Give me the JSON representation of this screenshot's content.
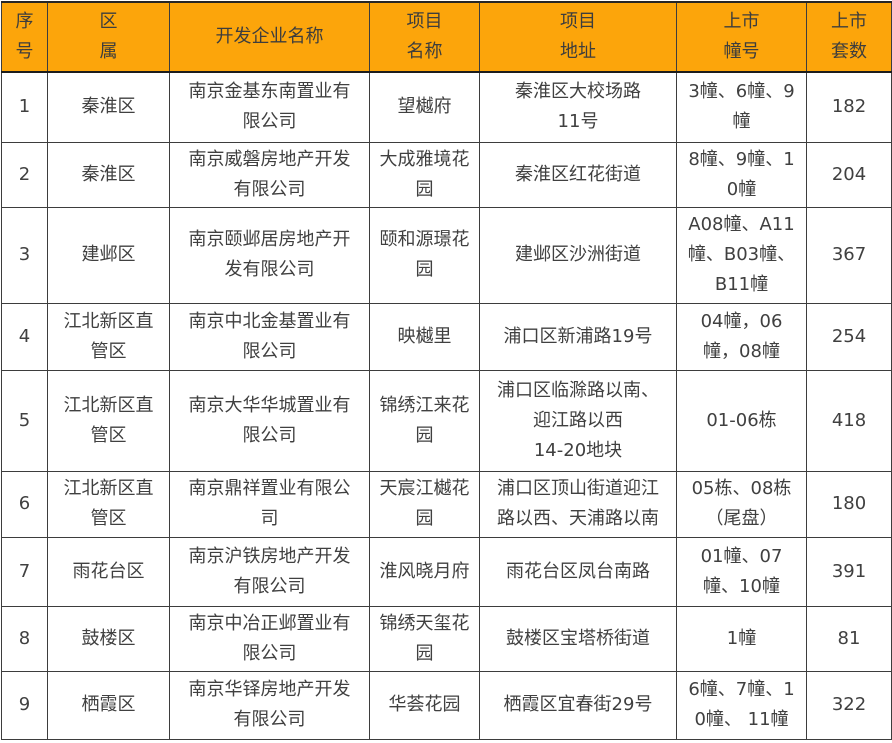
{
  "colors": {
    "header_bg": "#FCA50B",
    "header_text": "#3d3d3d",
    "body_text": "#404040",
    "grid_border": "#3d3d3d"
  },
  "table": {
    "columns": [
      {
        "id": "index",
        "label": "序\n号"
      },
      {
        "id": "district",
        "label": "区\n属"
      },
      {
        "id": "developer",
        "label": "开发企业名称"
      },
      {
        "id": "project",
        "label": "项目\n名称"
      },
      {
        "id": "address",
        "label": "项目\n地址"
      },
      {
        "id": "buildings",
        "label": "上市\n幢号"
      },
      {
        "id": "units",
        "label": "上市\n套数"
      }
    ],
    "rows": [
      {
        "index": "1",
        "district": "秦淮区",
        "developer": "南京金基东南置业有\n限公司",
        "project": "望樾府",
        "address": "秦淮区大校场路\n11号",
        "buildings": "3幢、6幢、9\n幢",
        "units": "182"
      },
      {
        "index": "2",
        "district": "秦淮区",
        "developer": "南京威磐房地产开发\n有限公司",
        "project": "大成雅境花\n园",
        "address": "秦淮区红花街道",
        "buildings": "8幢、9幢、1\n0幢",
        "units": "204"
      },
      {
        "index": "3",
        "district": "建邺区",
        "developer": "南京颐邺居房地产开\n发有限公司",
        "project": "颐和源璟花\n园",
        "address": "建邺区沙洲街道",
        "buildings": "A08幢、A11\n幢、B03幢、\nB11幢",
        "units": "367"
      },
      {
        "index": "4",
        "district": "江北新区直\n管区",
        "developer": "南京中北金基置业有\n限公司",
        "project": "映樾里",
        "address": "浦口区新浦路19号",
        "buildings": "04幢，06\n幢，08幢",
        "units": "254"
      },
      {
        "index": "5",
        "district": "江北新区直\n管区",
        "developer": "南京大华华城置业有\n限公司",
        "project": "锦绣江来花\n园",
        "address": "浦口区临滁路以南、\n迎江路以西\n14-20地块",
        "buildings": "01-06栋",
        "units": "418"
      },
      {
        "index": "6",
        "district": "江北新区直\n管区",
        "developer": "南京鼎祥置业有限公\n司",
        "project": "天宸江樾花\n园",
        "address": "浦口区顶山街道迎江\n路以西、天浦路以南",
        "buildings": "05栋、08栋\n（尾盘）",
        "units": "180"
      },
      {
        "index": "7",
        "district": "雨花台区",
        "developer": "南京沪铁房地产开发\n有限公司",
        "project": "淮风晓月府",
        "address": "雨花台区凤台南路",
        "buildings": "01幢、07\n幢、10幢",
        "units": "391"
      },
      {
        "index": "8",
        "district": "鼓楼区",
        "developer": "南京中冶正邺置业有\n限公司",
        "project": "锦绣天玺花\n园",
        "address": "鼓楼区宝塔桥街道",
        "buildings": "1幢",
        "units": "81"
      },
      {
        "index": "9",
        "district": "栖霞区",
        "developer": "南京华铎房地产开发\n有限公司",
        "project": "华荟花园",
        "address": "栖霞区宜春街29号",
        "buildings": "6幢、7幢、1\n0幢、 11幢",
        "units": "322"
      }
    ]
  }
}
